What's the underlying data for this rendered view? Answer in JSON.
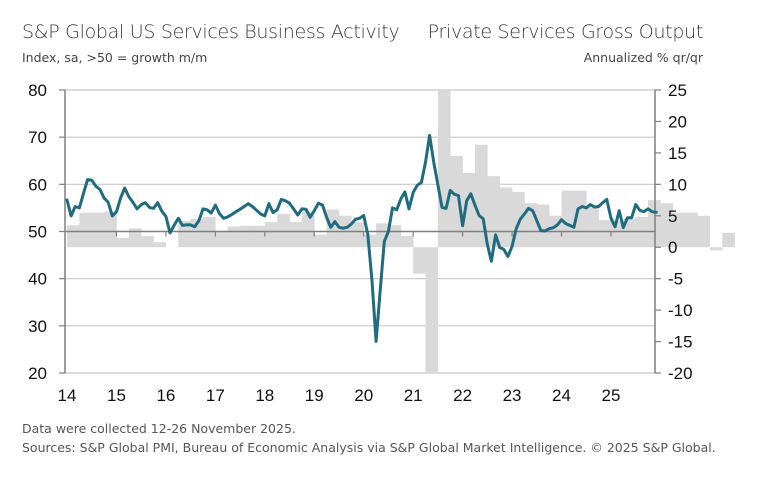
{
  "header": {
    "left_title": "S&P Global US Services Business Activity",
    "left_subtitle": "Index, sa, >50 = growth m/m",
    "right_title": "Private Services Gross Output",
    "right_subtitle": "Annualized % qr/qr"
  },
  "footnotes": {
    "line1": "Data were collected 12-26 November 2025.",
    "line2": "Sources: S&P Global PMI, Bureau of Economic Analysis via S&P Global Market Intelligence. © 2025 S&P Global."
  },
  "colors": {
    "line": "#1f6b80",
    "bars": "#d9d9d9",
    "grid": "#c8c8c8",
    "axis": "#7f7f7f"
  },
  "chart_data": {
    "type": "line+bar",
    "title": "S&P Global US Services Business Activity vs Private Services Gross Output",
    "xlabel": "",
    "x_tick_labels": [
      "14",
      "15",
      "16",
      "17",
      "18",
      "19",
      "20",
      "21",
      "22",
      "23",
      "24",
      "25"
    ],
    "x_range": [
      2014.0,
      2025.95
    ],
    "left_axis": {
      "label": "Index, sa, >50 = growth m/m",
      "ylim": [
        20,
        80
      ],
      "ticks": [
        20,
        30,
        40,
        50,
        60,
        70,
        80
      ],
      "tick_labels": [
        "20",
        "30",
        "40",
        "50",
        "60",
        "70",
        "80"
      ]
    },
    "right_axis": {
      "label": "Annualized % qr/qr",
      "ylim": [
        -20,
        25
      ],
      "ticks": [
        -20,
        -15,
        -10,
        -5,
        0,
        5,
        10,
        15,
        20,
        25
      ],
      "tick_labels": [
        "-20",
        "-15",
        "-10",
        "-5",
        "0",
        "5",
        "10",
        "15",
        "20",
        "25"
      ]
    },
    "grid": true,
    "legend": "none",
    "series": [
      {
        "name": "S&P Global US Services Business Activity",
        "type": "line",
        "axis": "left",
        "start": "2014-01",
        "frequency": "monthly",
        "values": [
          56.7,
          53.3,
          55.3,
          55.0,
          58.1,
          61.0,
          60.9,
          59.6,
          58.9,
          57.1,
          56.2,
          53.3,
          54.2,
          57.1,
          59.2,
          57.4,
          56.2,
          54.8,
          55.7,
          56.1,
          55.1,
          54.9,
          56.1,
          54.3,
          53.2,
          49.7,
          51.3,
          52.8,
          51.3,
          51.4,
          51.4,
          51.0,
          52.3,
          54.8,
          54.6,
          53.9,
          55.6,
          53.8,
          52.8,
          53.1,
          53.6,
          54.2,
          54.7,
          55.3,
          55.9,
          55.3,
          54.5,
          53.7,
          53.3,
          55.9,
          54.0,
          54.6,
          56.8,
          56.5,
          56.0,
          54.8,
          53.5,
          54.8,
          54.7,
          53.0,
          54.4,
          56.0,
          55.6,
          53.0,
          50.9,
          52.1,
          50.9,
          50.7,
          50.9,
          51.6,
          52.6,
          52.8,
          53.4,
          49.4,
          39.8,
          26.7,
          37.5,
          47.9,
          50.0,
          55.0,
          54.6,
          56.9,
          58.4,
          54.8,
          58.3,
          59.8,
          60.4,
          64.7,
          70.4,
          64.6,
          59.9,
          55.1,
          54.9,
          58.7,
          57.9,
          57.6,
          51.2,
          56.5,
          58.0,
          55.6,
          53.4,
          52.7,
          47.3,
          43.7,
          49.3,
          46.6,
          46.2,
          44.7,
          46.8,
          50.6,
          52.6,
          53.7,
          54.9,
          54.4,
          52.3,
          50.2,
          50.1,
          50.6,
          50.8,
          51.4,
          52.5,
          51.7,
          51.3,
          50.9,
          54.8,
          55.3,
          55.0,
          55.7,
          55.2,
          55.3,
          56.1,
          56.8,
          52.8,
          51.0,
          54.4,
          50.8,
          52.9,
          52.9,
          55.7,
          54.5,
          54.2,
          54.8,
          54.2,
          54.1
        ]
      },
      {
        "name": "Private Services Gross Output",
        "type": "bar",
        "axis": "right",
        "start": "2014-Q1",
        "frequency": "quarterly",
        "values": [
          3.5,
          5.5,
          5.5,
          5.7,
          1.5,
          3.0,
          1.8,
          0.8,
          0.0,
          4.2,
          4.5,
          4.8,
          2.5,
          3.3,
          3.4,
          3.4,
          4.0,
          5.3,
          4.0,
          5.7,
          2.0,
          6.0,
          5.0,
          4.0,
          2.0,
          3.8,
          3.5,
          1.8,
          -4.2,
          -20.0,
          25.0,
          14.5,
          11.8,
          16.3,
          11.3,
          9.5,
          8.8,
          7.0,
          6.8,
          5.0,
          9.0,
          9.0,
          6.5,
          4.3,
          4.2,
          4.5,
          4.8,
          7.5,
          7.0,
          5.5,
          5.5,
          5.0,
          -0.5,
          2.3
        ]
      }
    ]
  }
}
